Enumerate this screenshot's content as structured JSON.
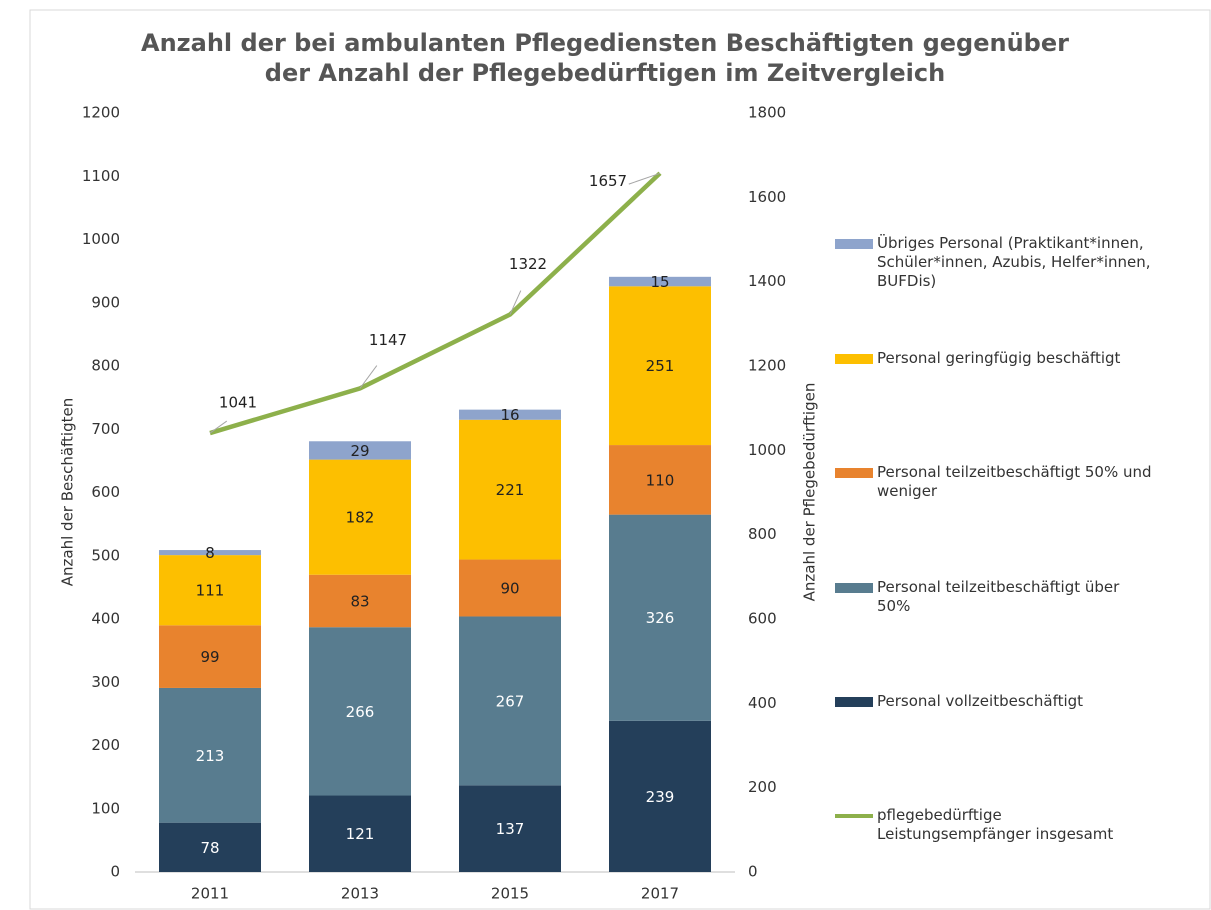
{
  "chart_data": {
    "type": "bar",
    "stacked": true,
    "title": "Anzahl der bei ambulanten Pflegediensten Beschäftigten gegenüber der Anzahl der Pflegebedürftigen im Zeitvergleich",
    "y_label": "Anzahl der Beschäftigten",
    "y2_label": "Anzahl der Pflegebedürftigen",
    "categories": [
      "2011",
      "2013",
      "2015",
      "2017"
    ],
    "series": [
      {
        "name": "Personal vollzeitbeschäftigt",
        "color": "#243f5a",
        "label_color": "#ffffff",
        "values": [
          78,
          121,
          137,
          239
        ]
      },
      {
        "name": "Personal teilzeitbeschäftigt über 50%",
        "color": "#587c8f",
        "label_color": "#ffffff",
        "values": [
          213,
          266,
          267,
          326
        ]
      },
      {
        "name": "Personal teilzeitbeschäftigt 50% und weniger",
        "color": "#e8832e",
        "label_color": "#222222",
        "values": [
          99,
          83,
          90,
          110
        ]
      },
      {
        "name": "Personal geringfügig beschäftigt",
        "color": "#fdbf00",
        "label_color": "#222222",
        "values": [
          111,
          182,
          221,
          251
        ]
      },
      {
        "name": "Übriges Personal (Praktikant*innen, Schüler*innen, Azubis, Helfer*innen, BUFDis)",
        "color": "#8ea4cc",
        "label_color": "#222222",
        "values": [
          8,
          29,
          16,
          15
        ]
      },
      {
        "name": "pflegebedürftige Leistungsempfänger insgesamt",
        "type": "line",
        "axis": "y2",
        "color": "#8db04b",
        "label_color": "#222222",
        "values": [
          1041,
          1147,
          1322,
          1657
        ]
      }
    ],
    "ylim": [
      0,
      1200
    ],
    "yticks": [
      0,
      100,
      200,
      300,
      400,
      500,
      600,
      700,
      800,
      900,
      1000,
      1100,
      1200
    ],
    "y2lim": [
      0,
      1800
    ],
    "y2ticks": [
      0,
      200,
      400,
      600,
      800,
      1000,
      1200,
      1400,
      1600,
      1800
    ],
    "legend": "right"
  }
}
